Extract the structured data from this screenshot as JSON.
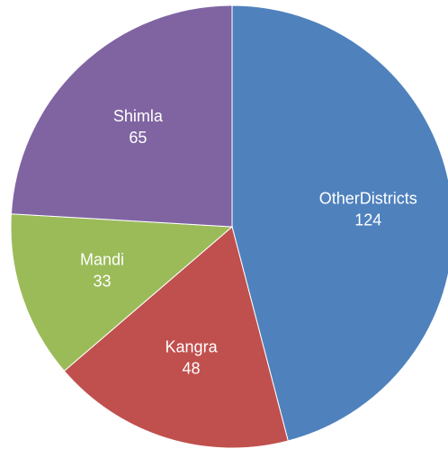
{
  "chart_data": {
    "type": "pie",
    "categories": [
      "OtherDistricts",
      "Kangra",
      "Mandi",
      "Shimla"
    ],
    "values": [
      124,
      48,
      33,
      65
    ],
    "colors": [
      "#4f81bd",
      "#c0504d",
      "#9bbb59",
      "#8064a2"
    ],
    "start_angle": 0,
    "direction": "clockwise"
  }
}
